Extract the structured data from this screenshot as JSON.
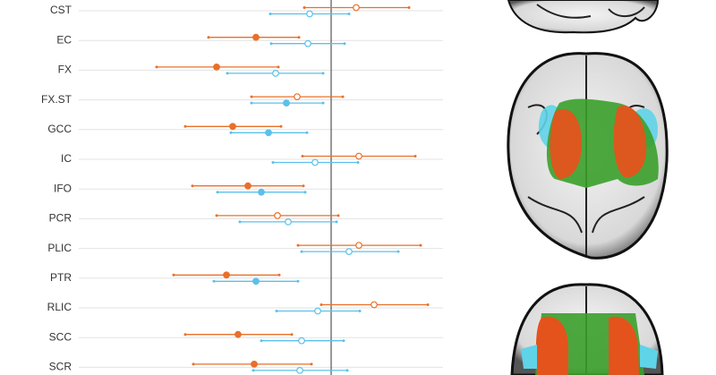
{
  "chart_data": {
    "type": "forest",
    "categories": [
      "CST",
      "EC",
      "FX",
      "FX.ST",
      "GCC",
      "IC",
      "IFO",
      "PCR",
      "PLIC",
      "PTR",
      "RLIC",
      "SCC",
      "SCR"
    ],
    "xlim": [
      -2.8,
      1.25
    ],
    "reference_x": 0,
    "grid": true,
    "series": [
      {
        "color": "#e8702a",
        "values": [
          0.28,
          -0.84,
          -1.28,
          -0.38,
          -1.1,
          0.31,
          -0.93,
          -0.6,
          0.31,
          -1.17,
          0.48,
          -1.04,
          -0.86
        ],
        "lower": [
          -0.3,
          -1.37,
          -1.95,
          -0.89,
          -1.63,
          -0.32,
          -1.55,
          -1.28,
          -0.37,
          -1.76,
          -0.11,
          -1.63,
          -1.54
        ],
        "upper": [
          0.87,
          -0.36,
          -0.59,
          0.13,
          -0.56,
          0.94,
          -0.31,
          0.08,
          1.0,
          -0.58,
          1.08,
          -0.44,
          -0.22
        ],
        "filled": [
          false,
          true,
          true,
          false,
          true,
          false,
          true,
          false,
          false,
          true,
          false,
          true,
          true
        ]
      },
      {
        "color": "#5bc0eb",
        "values": [
          -0.24,
          -0.26,
          -0.62,
          -0.5,
          -0.7,
          -0.18,
          -0.78,
          -0.48,
          0.2,
          -0.84,
          -0.15,
          -0.33,
          -0.35
        ],
        "lower": [
          -0.68,
          -0.67,
          -1.16,
          -0.89,
          -1.12,
          -0.65,
          -1.27,
          -1.02,
          -0.33,
          -1.31,
          -0.61,
          -0.78,
          -0.87
        ],
        "upper": [
          0.2,
          0.15,
          -0.09,
          -0.09,
          -0.27,
          0.3,
          -0.29,
          0.06,
          0.75,
          -0.37,
          0.32,
          0.14,
          0.18
        ],
        "filled": [
          false,
          false,
          false,
          true,
          true,
          false,
          true,
          false,
          false,
          true,
          false,
          false,
          false
        ]
      }
    ]
  }
}
